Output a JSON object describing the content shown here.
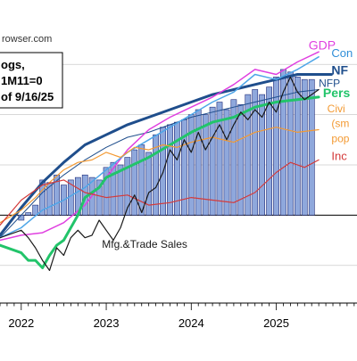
{
  "source_text": "rowser.com",
  "note_box": {
    "lines": [
      "ogs,",
      "1M11=0",
      "of 9/16/25"
    ]
  },
  "chart_data": {
    "type": "line",
    "xlim": [
      2021.75,
      2025.95
    ],
    "ylim": [
      -3.5,
      7.5
    ],
    "x_ticks": [
      {
        "x": 2022,
        "label": "2022"
      },
      {
        "x": 2023,
        "label": "2023"
      },
      {
        "x": 2024,
        "label": "2024"
      },
      {
        "x": 2025,
        "label": "2025"
      }
    ],
    "bars": {
      "name": "Mfg.&Trade Sales",
      "color": "#8fa8dc",
      "edge": "#1e2a78",
      "baseline": 0,
      "x": [
        2022.0,
        2022.083,
        2022.167,
        2022.25,
        2022.333,
        2022.417,
        2022.5,
        2022.583,
        2022.667,
        2022.75,
        2022.833,
        2022.917,
        2023.0,
        2023.083,
        2023.167,
        2023.25,
        2023.333,
        2023.417,
        2023.5,
        2023.583,
        2023.667,
        2023.75,
        2023.833,
        2023.917,
        2024.0,
        2024.083,
        2024.167,
        2024.25,
        2024.333,
        2024.417,
        2024.5,
        2024.583,
        2024.667,
        2024.75,
        2024.833,
        2024.917,
        2025.0,
        2025.083,
        2025.167,
        2025.25,
        2025.333,
        2025.417
      ],
      "values": [
        -0.2,
        0.1,
        0.4,
        1.4,
        1.3,
        1.6,
        1.2,
        1.4,
        1.5,
        1.6,
        1.5,
        1.4,
        1.9,
        2.1,
        2.0,
        2.3,
        2.6,
        2.8,
        2.5,
        3.2,
        3.5,
        3.6,
        3.7,
        3.8,
        4.0,
        4.2,
        4.0,
        4.3,
        4.5,
        4.2,
        4.6,
        4.4,
        4.8,
        5.0,
        4.8,
        5.1,
        5.5,
        5.8,
        5.7,
        5.5,
        5.4,
        5.4
      ]
    },
    "series": [
      {
        "name": "NFP",
        "color": "#1f4e8c",
        "width": 3,
        "x": [
          2021.75,
          2022.0,
          2022.25,
          2022.5,
          2022.75,
          2023.0,
          2023.25,
          2023.5,
          2023.75,
          2024.0,
          2024.25,
          2024.5,
          2024.75,
          2025.0,
          2025.25,
          2025.5,
          2025.65
        ],
        "y": [
          -0.8,
          0.3,
          1.3,
          2.1,
          2.8,
          3.2,
          3.6,
          3.9,
          4.2,
          4.5,
          4.8,
          5.0,
          5.2,
          5.4,
          5.6,
          5.6,
          5.6
        ]
      },
      {
        "name": "NFP (alt)",
        "color": "#1f4e8c",
        "width": 1,
        "x": [
          2021.75,
          2022.0,
          2022.25,
          2022.5,
          2022.75,
          2023.0,
          2023.25,
          2023.5,
          2023.75,
          2024.0,
          2024.25,
          2024.5,
          2024.75,
          2025.0,
          2025.25,
          2025.5
        ],
        "y": [
          -0.9,
          0.0,
          0.9,
          1.6,
          2.2,
          2.7,
          3.1,
          3.3,
          3.6,
          3.9,
          4.1,
          4.3,
          4.5,
          4.7,
          4.9,
          5.0
        ]
      },
      {
        "name": "GDP",
        "color": "#e040e0",
        "width": 1.5,
        "x": [
          2021.75,
          2022.0,
          2022.25,
          2022.5,
          2022.75,
          2023.0,
          2023.25,
          2023.5,
          2023.75,
          2024.0,
          2024.25,
          2024.5,
          2024.75,
          2025.0,
          2025.25,
          2025.5
        ],
        "y": [
          -1.0,
          -0.8,
          -0.7,
          -0.3,
          0.4,
          1.5,
          2.6,
          3.4,
          3.9,
          4.3,
          4.7,
          5.2,
          5.8,
          5.6,
          6.1,
          6.5
        ]
      },
      {
        "name": "Consumption",
        "color": "#4ea6e8",
        "width": 1.5,
        "x": [
          2021.75,
          2022.0,
          2022.25,
          2022.5,
          2022.75,
          2023.0,
          2023.25,
          2023.5,
          2023.75,
          2024.0,
          2024.25,
          2024.5,
          2024.75,
          2025.0,
          2025.25,
          2025.5
        ],
        "y": [
          -0.9,
          -0.5,
          0.2,
          0.6,
          1.1,
          1.8,
          2.5,
          3.0,
          3.5,
          4.0,
          4.5,
          4.9,
          5.6,
          5.4,
          5.8,
          6.3
        ]
      },
      {
        "name": "Personal Income",
        "color": "#22c46a",
        "width": 3,
        "x": [
          2021.75,
          2022.0,
          2022.083,
          2022.167,
          2022.25,
          2022.333,
          2022.417,
          2022.5,
          2022.667,
          2022.75,
          2022.917,
          2023.0,
          2023.25,
          2023.5,
          2023.75,
          2024.0,
          2024.25,
          2024.5,
          2024.75,
          2025.0,
          2025.25,
          2025.5
        ],
        "y": [
          -1.2,
          -1.5,
          -1.8,
          -1.8,
          -2.1,
          -1.6,
          -1.2,
          -1.0,
          0.0,
          0.7,
          1.1,
          1.5,
          1.9,
          2.3,
          2.8,
          3.3,
          3.7,
          3.9,
          4.3,
          4.5,
          4.6,
          4.7
        ]
      },
      {
        "name": "Civilian Employment (smoothed population controls)",
        "color": "#f39a33",
        "width": 1.2,
        "x": [
          2021.75,
          2022.0,
          2022.167,
          2022.333,
          2022.5,
          2022.667,
          2022.833,
          2023.0,
          2023.167,
          2023.333,
          2023.5,
          2023.667,
          2023.833,
          2024.0,
          2024.25,
          2024.5,
          2024.75,
          2025.0,
          2025.25,
          2025.5
        ],
        "y": [
          -0.3,
          0.2,
          0.7,
          1.3,
          1.8,
          2.1,
          2.2,
          2.5,
          2.3,
          2.7,
          2.6,
          2.8,
          2.7,
          2.9,
          3.1,
          2.9,
          3.3,
          3.5,
          3.3,
          3.4
        ]
      },
      {
        "name": "Industrial Production",
        "color": "#d43a3a",
        "width": 1.2,
        "x": [
          2021.75,
          2022.0,
          2022.25,
          2022.5,
          2022.75,
          2023.0,
          2023.25,
          2023.5,
          2023.75,
          2024.0,
          2024.25,
          2024.5,
          2024.75,
          2025.0,
          2025.167,
          2025.333,
          2025.5
        ],
        "y": [
          -0.4,
          0.6,
          1.2,
          1.4,
          0.9,
          0.7,
          0.8,
          0.4,
          0.5,
          0.7,
          0.6,
          0.5,
          0.9,
          1.7,
          2.1,
          1.9,
          2.2
        ]
      },
      {
        "name": "Mfg.&Trade Sales",
        "color": "#1a1a1a",
        "width": 1.2,
        "x": [
          2021.75,
          2022.0,
          2022.083,
          2022.167,
          2022.25,
          2022.333,
          2022.417,
          2022.5,
          2022.583,
          2022.667,
          2022.75,
          2022.833,
          2022.917,
          2023.0,
          2023.083,
          2023.167,
          2023.25,
          2023.333,
          2023.417,
          2023.5,
          2023.583,
          2023.667,
          2023.75,
          2023.833,
          2023.917,
          2024.0,
          2024.083,
          2024.167,
          2024.25,
          2024.333,
          2024.417,
          2024.5,
          2024.583,
          2024.667,
          2024.75,
          2024.833,
          2024.917,
          2025.0,
          2025.083,
          2025.167,
          2025.25,
          2025.333,
          2025.417,
          2025.5
        ],
        "y": [
          -0.9,
          -0.6,
          -0.9,
          -1.3,
          -1.8,
          -2.2,
          -1.3,
          -1.6,
          -0.9,
          -0.6,
          -0.9,
          -0.8,
          -0.2,
          -0.6,
          -1.0,
          -0.5,
          0.3,
          0.8,
          0.1,
          0.9,
          1.1,
          1.7,
          2.6,
          2.2,
          3.0,
          2.5,
          3.3,
          2.6,
          3.1,
          3.6,
          3.0,
          3.6,
          4.1,
          3.8,
          4.2,
          3.9,
          4.5,
          4.1,
          4.9,
          5.5,
          4.9,
          4.6,
          4.8,
          5.0
        ]
      }
    ],
    "labels": [
      {
        "text": "GDP",
        "color": "#e040e0",
        "x": 2025.38,
        "y": 6.6,
        "size": 14,
        "weight": "normal"
      },
      {
        "text": "Con",
        "color": "#2f8ed8",
        "x": 2025.65,
        "y": 6.3,
        "size": 13,
        "weight": "normal"
      },
      {
        "text": "NF",
        "color": "#1f4e8c",
        "x": 2025.65,
        "y": 5.6,
        "size": 14,
        "weight": "bold"
      },
      {
        "text": "NFP",
        "color": "#1f4e8c",
        "x": 2025.5,
        "y": 5.1,
        "size": 12,
        "weight": "normal"
      },
      {
        "text": "Pers",
        "color": "#22c46a",
        "x": 2025.55,
        "y": 4.7,
        "size": 14,
        "weight": "bold"
      },
      {
        "text": "Civi",
        "color": "#f39a33",
        "x": 2025.6,
        "y": 4.1,
        "size": 12,
        "weight": "normal"
      },
      {
        "text": "(sm",
        "color": "#f39a33",
        "x": 2025.65,
        "y": 3.5,
        "size": 12,
        "weight": "normal"
      },
      {
        "text": "pop",
        "color": "#f39a33",
        "x": 2025.65,
        "y": 2.9,
        "size": 12,
        "weight": "normal"
      },
      {
        "text": "Inc",
        "color": "#d43a3a",
        "x": 2025.65,
        "y": 2.2,
        "size": 13,
        "weight": "normal"
      },
      {
        "text": "Mfg.&Trade Sales",
        "color": "#1a1a1a",
        "x": 2022.95,
        "y": -1.3,
        "size": 12,
        "weight": "normal"
      }
    ]
  }
}
